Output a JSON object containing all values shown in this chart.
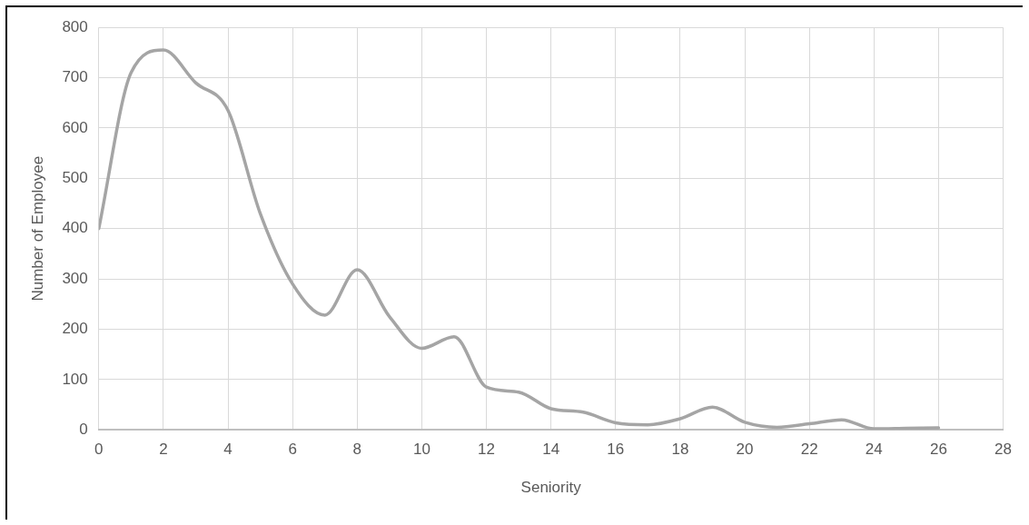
{
  "chart_data": {
    "type": "line",
    "xlabel": "Seniority",
    "ylabel": "Number of Employee",
    "x": [
      0,
      1,
      2,
      3,
      4,
      5,
      6,
      7,
      8,
      9,
      10,
      11,
      12,
      13,
      14,
      15,
      16,
      17,
      18,
      19,
      20,
      21,
      22,
      23,
      24,
      25,
      26
    ],
    "series": [
      {
        "color": "#a5a5a5",
        "values": [
          400,
          710,
          755,
          690,
          635,
          430,
          290,
          228,
          318,
          225,
          162,
          185,
          85,
          75,
          42,
          35,
          14,
          10,
          22,
          45,
          15,
          5,
          12,
          20,
          2,
          3,
          4
        ]
      }
    ],
    "xlim": [
      0,
      28
    ],
    "xticks": [
      0,
      2,
      4,
      6,
      8,
      10,
      12,
      14,
      16,
      18,
      20,
      22,
      24,
      26,
      28
    ],
    "ylim": [
      0,
      800
    ],
    "yticks": [
      0,
      100,
      200,
      300,
      400,
      500,
      600,
      700,
      800
    ],
    "grid": true,
    "legend": false,
    "marker": "none",
    "line_style": "solid"
  }
}
